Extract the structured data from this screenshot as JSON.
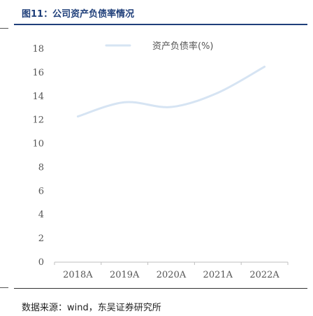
{
  "header": {
    "title": "图11：公司资产负债率情况"
  },
  "footer": {
    "source": "数据来源：wind，东吴证券研究所"
  },
  "chart_data": {
    "type": "line",
    "title": "",
    "xlabel": "",
    "ylabel": "",
    "categories": [
      "2018A",
      "2019A",
      "2020A",
      "2021A",
      "2022A"
    ],
    "series": [
      {
        "name": "资产负债率(%)",
        "values": [
          12.3,
          13.5,
          13.1,
          14.3,
          16.5
        ],
        "color": "#d6e4f3"
      }
    ],
    "ylim": [
      0,
      18
    ],
    "yticks": [
      0,
      2,
      4,
      6,
      8,
      10,
      12,
      14,
      16,
      18
    ],
    "grid": false,
    "legend_position": "top"
  }
}
